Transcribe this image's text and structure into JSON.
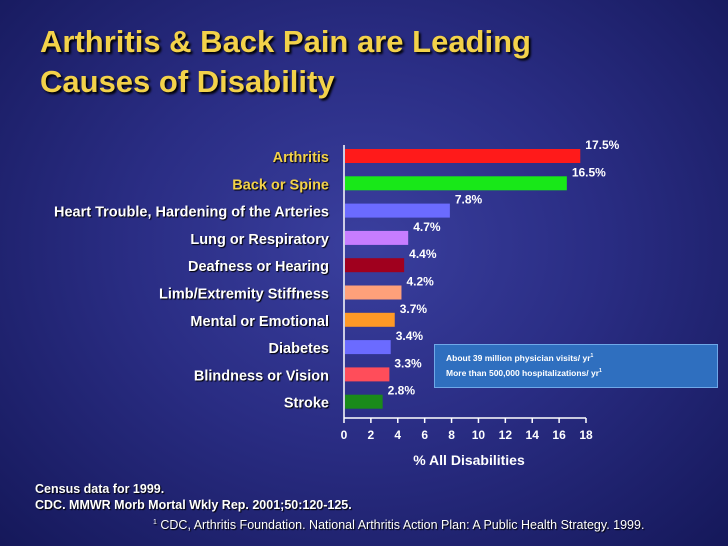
{
  "title": "Arthritis & Back Pain are Leading\n Causes of Disability",
  "chart_data": {
    "type": "bar",
    "orientation": "horizontal",
    "categories": [
      "Arthritis",
      "Back or Spine",
      "Heart Trouble, Hardening of the Arteries",
      "Lung or Respiratory",
      "Deafness or Hearing",
      "Limb/Extremity Stiffness",
      "Mental or Emotional",
      "Diabetes",
      "Blindness or Vision",
      "Stroke"
    ],
    "values": [
      17.5,
      16.5,
      7.8,
      4.7,
      4.4,
      4.2,
      3.7,
      3.4,
      3.3,
      2.8
    ],
    "value_labels": [
      "17.5%",
      "16.5%",
      "7.8%",
      "4.7%",
      "4.4%",
      "4.2%",
      "3.7%",
      "3.4%",
      "3.3%",
      "2.8%"
    ],
    "bar_colors": [
      "#ff1a1a",
      "#18e818",
      "#6b6bff",
      "#c77dff",
      "#a0001e",
      "#ffa07a",
      "#ff9926",
      "#6b6bff",
      "#ff4d5a",
      "#1a8a1a"
    ],
    "label_colors": [
      "#f3d24a",
      "#f3d24a",
      "#ffffff",
      "#ffffff",
      "#ffffff",
      "#ffffff",
      "#ffffff",
      "#ffffff",
      "#ffffff",
      "#ffffff"
    ],
    "xlabel": "% All Disabilities",
    "xlim": [
      0,
      18
    ],
    "xticks": [
      "0",
      "2",
      "4",
      "6",
      "8",
      "10",
      "12",
      "14",
      "16",
      "18"
    ]
  },
  "callout": {
    "line1": "About 39 million physician visits/ yr",
    "line1_sup": "1",
    "line2": "More than 500,000 hospitalizations/ yr",
    "line2_sup": "1"
  },
  "source": {
    "line1": "Census data for 1999.",
    "line2": "CDC. MMWR Morb Mortal Wkly Rep. 2001;50:120-125."
  },
  "footnote": {
    "sup": "1",
    "text": " CDC, Arthritis Foundation. National Arthritis Action Plan: A Public Health Strategy. 1999."
  }
}
